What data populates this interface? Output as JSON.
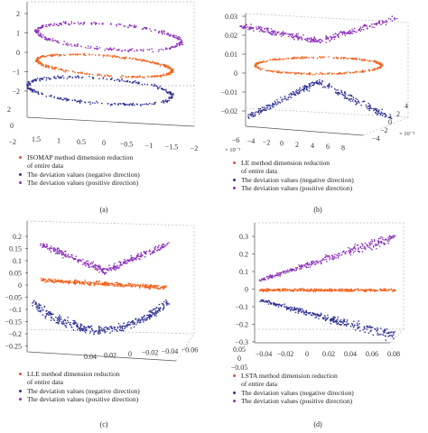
{
  "colors": {
    "primary": "#f26522",
    "negative": "#2e3192",
    "positive": "#8b2fb9",
    "primary_dot": "#e84c3d",
    "axis": "#555555"
  },
  "chart_data": [
    {
      "type": "scatter",
      "id": "a",
      "caption": "(a)",
      "z_ticks": [
        "2",
        "1",
        "0",
        "−1",
        "−2"
      ],
      "x_ticks": [
        "1.5",
        "1",
        "0.5",
        "0",
        "−0.5",
        "−1",
        "−1.5",
        "−2"
      ],
      "y_ticks": [
        "2",
        "0",
        "−2"
      ],
      "legend": [
        "ISOMAP method dimension reduction",
        "of entire data",
        "The deviation values (negative direction)",
        "The deviation values (positive direction)"
      ],
      "series": [
        {
          "name": "ISOMAP method dimension reduction of entire data",
          "shape": "ring",
          "center": [
            0,
            0
          ],
          "radius": 1.4,
          "z": 0
        },
        {
          "name": "The deviation values (negative direction)",
          "shape": "ring",
          "center": [
            0,
            0
          ],
          "radius": 1.5,
          "z": -1.2
        },
        {
          "name": "The deviation values (positive direction)",
          "shape": "ring",
          "center": [
            0,
            0
          ],
          "radius": 1.5,
          "z": 1.2
        }
      ]
    },
    {
      "type": "scatter",
      "id": "b",
      "caption": "(b)",
      "z_ticks": [
        "0.03",
        "0.02",
        "0.01",
        "0",
        "−0.01",
        "−0.02"
      ],
      "x_ticks": [
        "−6",
        "−4",
        "−2",
        "0",
        "2",
        "4",
        "6",
        "8"
      ],
      "x_exponent": "× 10⁻³",
      "y_ticks": [
        "−4",
        "−2",
        "0",
        "2",
        "4"
      ],
      "y_exponent": "× 10⁻³",
      "legend": [
        "LE method dimension reduction",
        "of entire data",
        "The deviation values (negative direction)",
        "The deviation values (positive direction)"
      ],
      "series": [
        {
          "name": "LE method dimension reduction of entire data",
          "shape": "ring",
          "z": 0.005
        },
        {
          "name": "The deviation values (negative direction)",
          "shape": "saddle-low"
        },
        {
          "name": "The deviation values (positive direction)",
          "shape": "saddle-high"
        }
      ]
    },
    {
      "type": "scatter",
      "id": "c",
      "caption": "(c)",
      "z_ticks": [
        "0.2",
        "0.15",
        "0.1",
        "0.05",
        "0",
        "−0.05",
        "−0.1",
        "−0.15",
        "−0.2",
        "−0.25"
      ],
      "x_ticks": [
        "0.04",
        "0.02",
        "0",
        "−0.02",
        "−0.04",
        "−0.06"
      ],
      "y_ticks": [],
      "legend": [
        "LLE method dimension reduction",
        "of entire data",
        "The deviation values (negative direction)",
        "The deviation values (positive direction)"
      ],
      "series": [
        {
          "name": "LLE method dimension reduction of entire data",
          "shape": "band",
          "z": 0
        },
        {
          "name": "The deviation values (negative direction)",
          "shape": "arc-low"
        },
        {
          "name": "The deviation values (positive direction)",
          "shape": "x-high"
        }
      ]
    },
    {
      "type": "scatter",
      "id": "d",
      "caption": "(d)",
      "z_ticks": [
        "0.3",
        "0.2",
        "0.1",
        "0",
        "−0.1",
        "−0.2",
        "−0.3"
      ],
      "x_ticks": [
        "−0.04",
        "−0.02",
        "0",
        "0.02",
        "0.04",
        "0.06",
        "0.08"
      ],
      "y_ticks": [
        "0.05",
        "0",
        "−0.05"
      ],
      "legend": [
        "LSTA method dimension reduction",
        "of entire data",
        "The deviation values (negative direction)",
        "The deviation values (positive direction)"
      ],
      "series": [
        {
          "name": "LSTA method dimension reduction of entire data",
          "shape": "band",
          "z": 0
        },
        {
          "name": "The deviation values (negative direction)",
          "shape": "wedge-low"
        },
        {
          "name": "The deviation values (positive direction)",
          "shape": "wedge-high"
        }
      ]
    }
  ]
}
